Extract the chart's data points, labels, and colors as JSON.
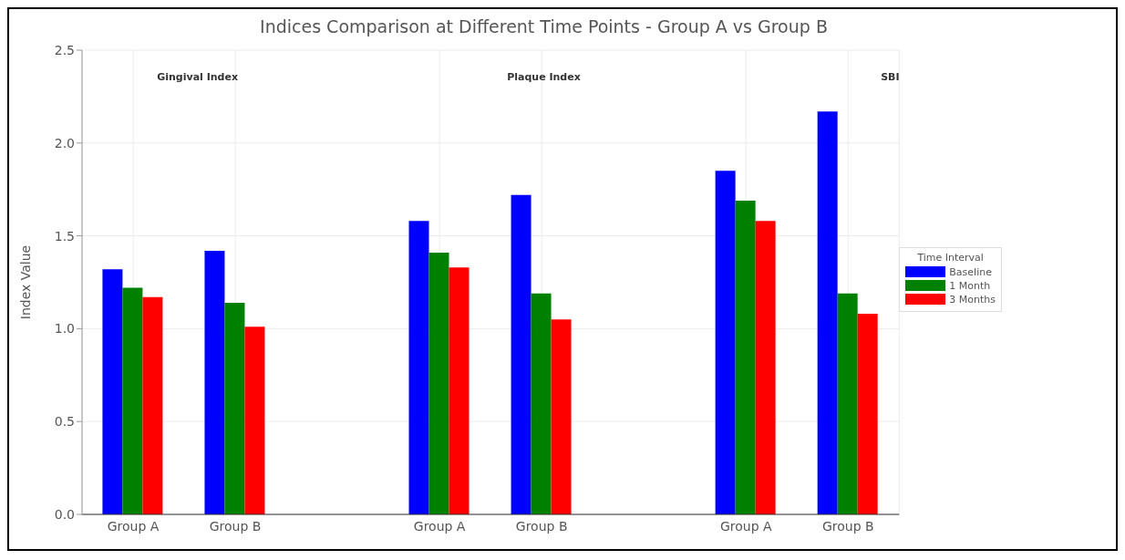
{
  "chart_data": {
    "type": "bar",
    "title": "Indices Comparison at Different Time Points - Group A vs Group B",
    "ylabel": "Index Value",
    "legend_title": "Time Interval",
    "categories": [
      "Group A",
      "Group B",
      null,
      "Group A",
      "Group B",
      null,
      "Group A",
      "Group B"
    ],
    "series": [
      {
        "name": "Baseline",
        "color": "#0000ff",
        "values": [
          1.32,
          1.42,
          null,
          1.58,
          1.72,
          null,
          1.85,
          2.17
        ]
      },
      {
        "name": "1 Month",
        "color": "#008000",
        "values": [
          1.22,
          1.14,
          null,
          1.41,
          1.19,
          null,
          1.69,
          1.19
        ]
      },
      {
        "name": "3 Months",
        "color": "#ff0000",
        "values": [
          1.17,
          1.01,
          null,
          1.33,
          1.05,
          null,
          1.58,
          1.08
        ]
      }
    ],
    "annotations": [
      "Gingival Index",
      "Plaque Index",
      "SBI"
    ],
    "ylim": [
      0,
      2.5
    ],
    "yticks": [
      {
        "value": 0,
        "label": "0.0"
      },
      0.5,
      {
        "value": 1,
        "label": "1.0"
      },
      1.5,
      {
        "value": 2,
        "label": "2.0"
      },
      2.5
    ],
    "grid": true,
    "legend": "right"
  }
}
